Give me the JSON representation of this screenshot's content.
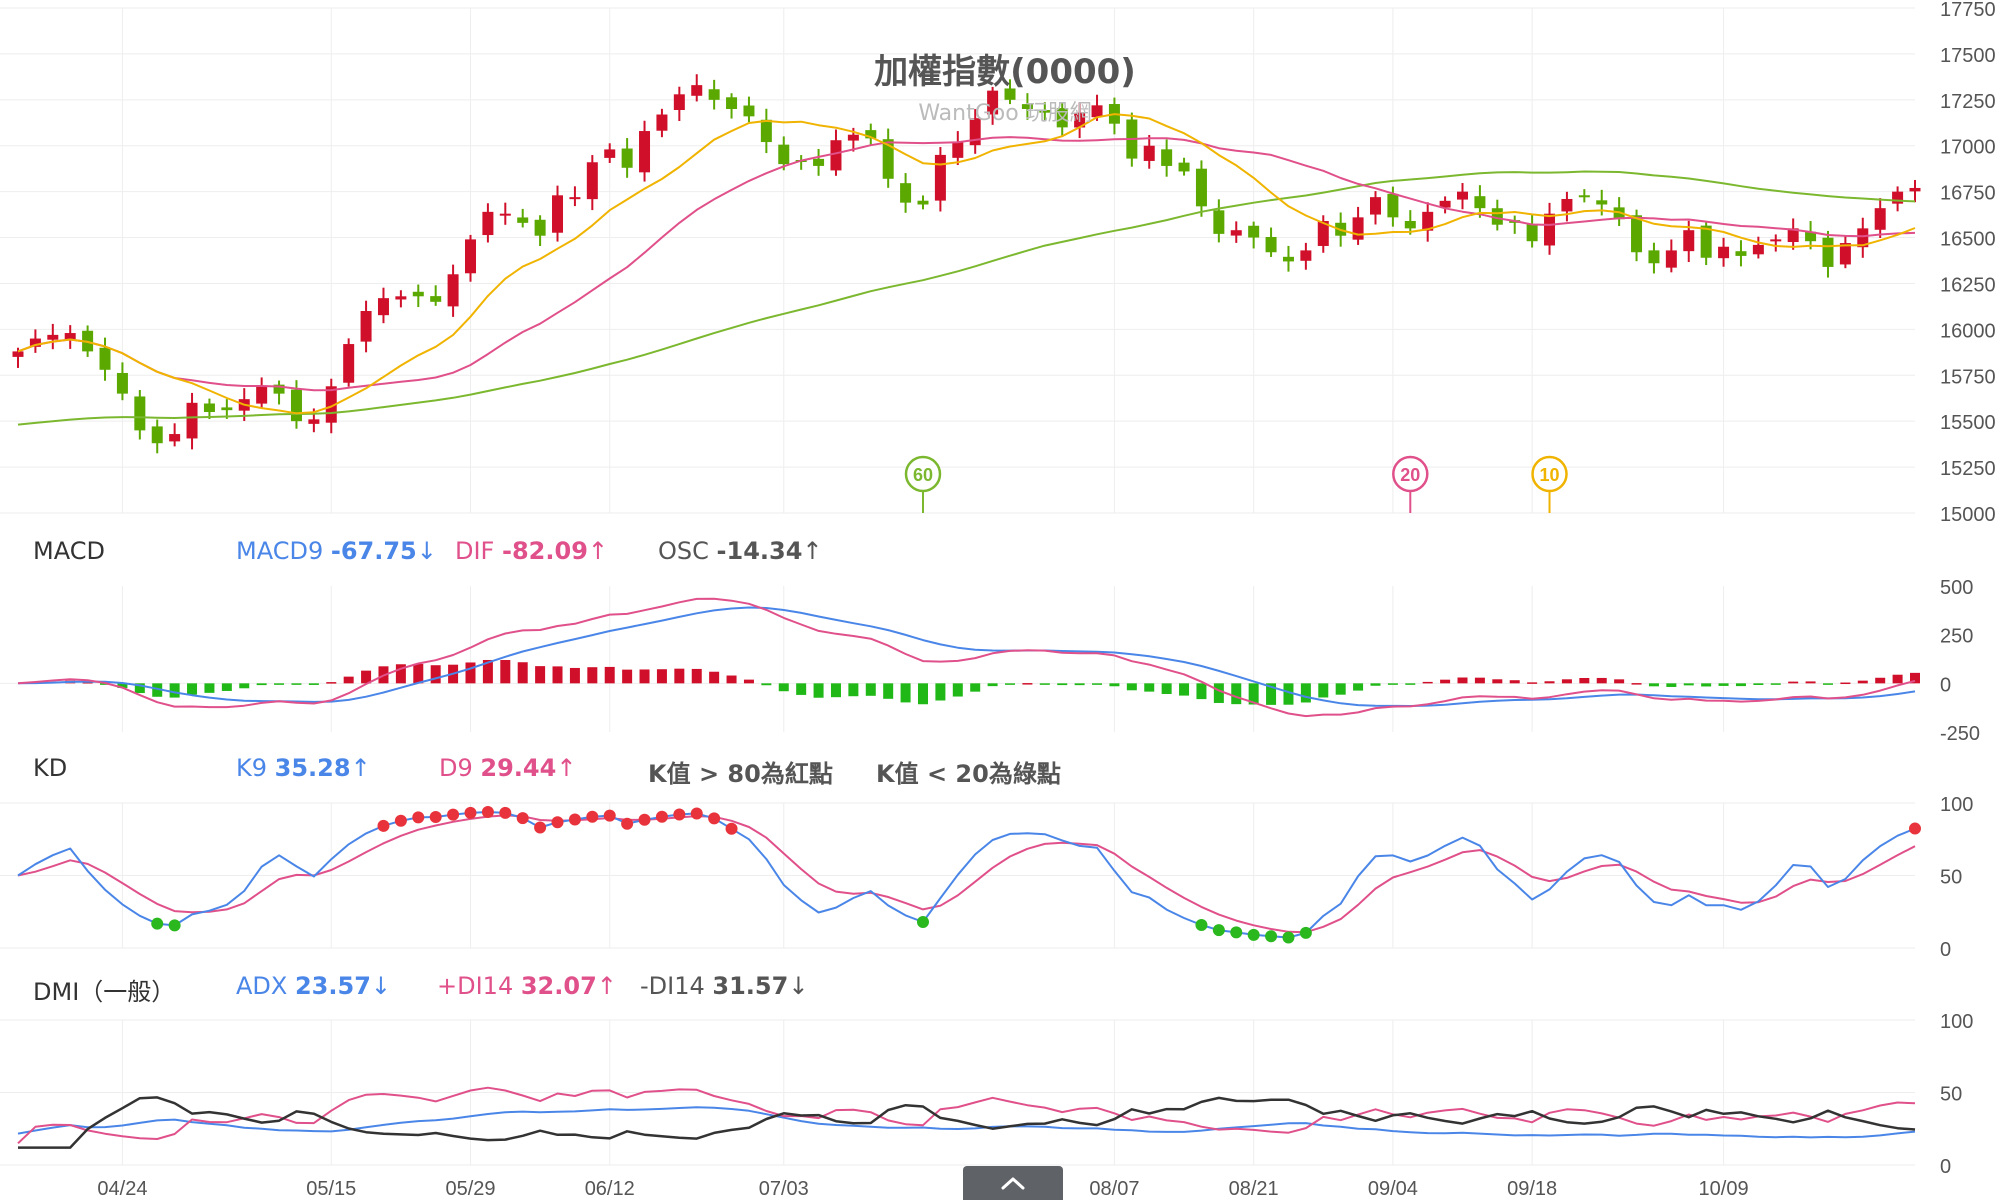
{
  "chart_data": [
    {
      "type": "candlestick",
      "title": "加權指數(0000)",
      "subtitle": "WantGoo 玩股網",
      "y_ticks": [
        17750,
        17500,
        17250,
        17000,
        16750,
        16500,
        16250,
        16000,
        15750,
        15500,
        15250,
        15000
      ],
      "ylim": [
        15000,
        17750
      ],
      "x_ticks": [
        {
          "i": 6,
          "label": "04/24"
        },
        {
          "i": 18,
          "label": "05/15"
        },
        {
          "i": 26,
          "label": "05/29"
        },
        {
          "i": 34,
          "label": "06/12"
        },
        {
          "i": 44,
          "label": "07/03"
        },
        {
          "i": 63,
          "label": "08/07"
        },
        {
          "i": 71,
          "label": "08/21"
        },
        {
          "i": 79,
          "label": "09/04"
        },
        {
          "i": 87,
          "label": "09/18"
        },
        {
          "i": 98,
          "label": "10/09"
        }
      ],
      "close": [
        15880,
        15950,
        15970,
        15980,
        15880,
        15780,
        15650,
        15450,
        15380,
        15430,
        15600,
        15550,
        15560,
        15620,
        15690,
        15650,
        15500,
        15510,
        15690,
        15920,
        16100,
        16170,
        16180,
        16180,
        16150,
        16300,
        16490,
        16640,
        16630,
        16580,
        16510,
        16730,
        16720,
        16910,
        16980,
        16880,
        17080,
        17170,
        17280,
        17330,
        17250,
        17200,
        17160,
        17020,
        16900,
        16920,
        16890,
        17030,
        17060,
        17040,
        16820,
        16690,
        16680,
        16950,
        17020,
        17150,
        17300,
        17250,
        17200,
        17180,
        17100,
        17180,
        17220,
        17120,
        16930,
        17000,
        16890,
        16860,
        16670,
        16520,
        16540,
        16500,
        16420,
        16370,
        16430,
        16590,
        16510,
        16610,
        16720,
        16610,
        16550,
        16640,
        16700,
        16750,
        16660,
        16570,
        16580,
        16480,
        16630,
        16710,
        16720,
        16680,
        16600,
        16420,
        16360,
        16430,
        16540,
        16390,
        16450,
        16400,
        16460,
        16490,
        16550,
        16480,
        16340,
        16470,
        16550,
        16660,
        16750,
        16770
      ]
    },
    {
      "type": "bar+line",
      "title": "MACD",
      "series": [
        {
          "name": "MACD9",
          "value": "-67.75",
          "trend": "down",
          "color": "#4a86e8"
        },
        {
          "name": "DIF",
          "value": "-82.09",
          "trend": "up",
          "color": "#e0508a"
        },
        {
          "name": "OSC",
          "value": "-14.34",
          "trend": "up",
          "color": "#555555"
        }
      ],
      "y_ticks": [
        500,
        250,
        0,
        -250
      ],
      "ylim": [
        -250,
        500
      ]
    },
    {
      "type": "line",
      "title": "KD",
      "series": [
        {
          "name": "K9",
          "value": "35.28",
          "trend": "up",
          "color": "#4a86e8"
        },
        {
          "name": "D9",
          "value": "29.44",
          "trend": "up",
          "color": "#e0508a"
        }
      ],
      "notes": [
        "K值 > 80為紅點",
        "K值 < 20為綠點"
      ],
      "y_ticks": [
        100,
        50,
        0
      ],
      "ylim": [
        0,
        100
      ]
    },
    {
      "type": "line",
      "title": "DMI（一般）",
      "series": [
        {
          "name": "ADX",
          "value": "23.57",
          "trend": "down",
          "color": "#4a86e8"
        },
        {
          "name": "+DI14",
          "value": "32.07",
          "trend": "up",
          "color": "#e0508a"
        },
        {
          "name": "-DI14",
          "value": "31.57",
          "trend": "down",
          "color": "#333333"
        }
      ],
      "y_ticks": [
        100,
        50,
        0
      ],
      "ylim": [
        0,
        100
      ]
    }
  ],
  "ma_markers": [
    {
      "label": "60",
      "color": "#7cb82f"
    },
    {
      "label": "20",
      "color": "#e0508a"
    },
    {
      "label": "10",
      "color": "#f0b400"
    }
  ],
  "arrows": {
    "up": "↑",
    "down": "↓"
  },
  "colors": {
    "up": "#d0102a",
    "down": "#5aa800",
    "ma10": "#f0b400",
    "ma20": "#e0508a",
    "ma60": "#7cb82f",
    "axis_text": "#555555",
    "grid": "#eeeeee"
  },
  "icons": {
    "collapse": "chevron-up-icon"
  }
}
